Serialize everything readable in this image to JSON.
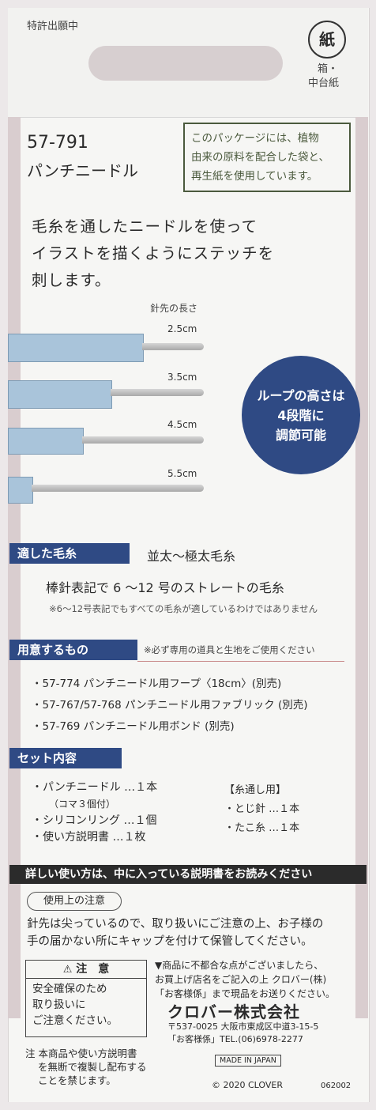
{
  "header": {
    "patent": "特許出願中",
    "recycle_label_glyph": "紙",
    "recycle_caption_1": "箱・",
    "recycle_caption_2": "中台紙"
  },
  "product": {
    "code": "57-791",
    "name": "パンチニードル"
  },
  "eco_note": [
    "このパッケージには、植物",
    "由来の原料を配合した袋と、",
    "再生紙を使用しています。"
  ],
  "description": [
    "毛糸を通したニードルを使って",
    "イラストを描くようにステッチを",
    "刺します。"
  ],
  "needle": {
    "heading": "針先の長さ",
    "lengths": [
      "2.5cm",
      "3.5cm",
      "4.5cm",
      "5.5cm"
    ]
  },
  "badge": [
    "ループの高さは",
    "4段階に",
    "調節可能"
  ],
  "yarn": {
    "title": "適した毛糸",
    "value": "並太〜極太毛糸",
    "detail": "棒針表記で 6 〜12 号のストレートの毛糸",
    "note": "※6〜12号表記でもすべての毛糸が適しているわけではありません"
  },
  "prepare": {
    "title": "用意するもの",
    "note": "※必ず専用の道具と生地をご使用ください",
    "items": [
      "・57-774 パンチニードル用フープ〈18cm〉(別売)",
      "・57-767/57-768 パンチニードル用ファブリック (別売)",
      "・57-769 パンチニードル用ボンド (別売)"
    ]
  },
  "contents": {
    "title": "セット内容",
    "left": [
      "・パンチニードル …１本",
      "（コマ３個付）",
      "・シリコンリング …１個",
      "・使い方説明書 …１枚"
    ],
    "right_heading": "【糸通し用】",
    "right": [
      "・とじ針 …１本",
      "・たこ糸 …１本"
    ]
  },
  "manual_banner": "詳しい使い方は、中に入っている説明書をお読みください",
  "caution": {
    "title": "使用上の注意",
    "text": [
      "針先は尖っているので、取り扱いにご注意の上、お子様の",
      "手の届かない所にキャップを付けて保管してください。"
    ]
  },
  "warning": {
    "title": "注　意",
    "text": [
      "安全確保のため",
      "取り扱いに",
      "ご注意ください。"
    ]
  },
  "company": {
    "notice": [
      "▼商品に不都合な点がございましたら、",
      "お買上げ店名をご記入の上 クロバー(株)",
      "「お客様係」まで現品をお送りください。"
    ],
    "name": "クロバー株式会社",
    "address": "〒537-0025 大阪市東成区中道3-15-5",
    "phone": "「お客様係」TEL.(06)6978-2277"
  },
  "footer": {
    "copy_note": [
      "注 本商品や使い方説明書",
      "を無断で複製し配布する",
      "ことを禁じます。"
    ],
    "made_in": "MADE IN JAPAN",
    "copyright": "© 2020  CLOVER",
    "code": "062002"
  }
}
